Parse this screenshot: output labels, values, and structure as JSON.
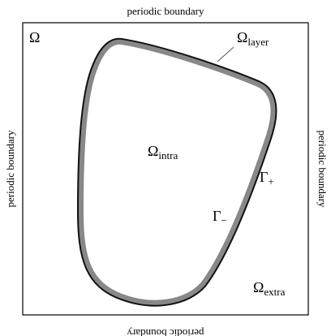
{
  "boundary_labels": {
    "top": "periodic boundary",
    "bottom": "periodic boundary",
    "left": "periodic boundary",
    "right": "periodic boundary"
  },
  "regions": {
    "omega": {
      "symbol": "Ω"
    },
    "layer": {
      "symbol": "Ω",
      "subscript": "layer"
    },
    "intra": {
      "symbol": "Ω",
      "subscript": "intra"
    },
    "extra": {
      "symbol": "Ω",
      "subscript": "extra"
    },
    "gamma_plus": {
      "symbol": "Γ",
      "subscript": "+"
    },
    "gamma_minus": {
      "symbol": "Γ",
      "subscript": "−"
    }
  }
}
